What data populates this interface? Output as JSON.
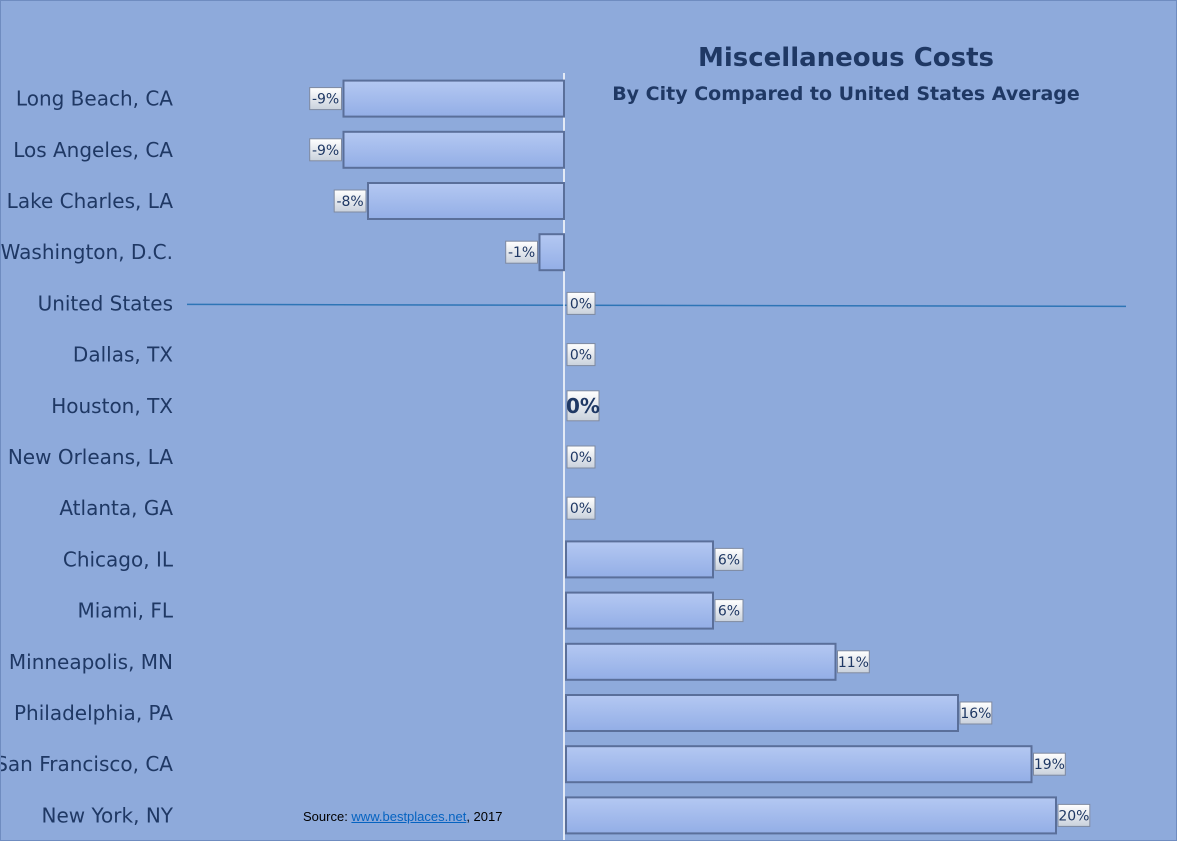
{
  "chart_data": {
    "type": "bar",
    "orientation": "horizontal",
    "title": "Miscellaneous Costs",
    "subtitle": "By City Compared to United States Average",
    "categories": [
      "Long Beach, CA",
      "Los Angeles,  CA",
      "Lake Charles, LA",
      "Washington, D.C.",
      "United States",
      "Dallas, TX",
      "Houston, TX",
      "New Orleans, LA",
      "Atlanta, GA",
      "Chicago, IL",
      "Miami, FL",
      "Minneapolis, MN",
      "Philadelphia, PA",
      "San Francisco, CA",
      "New York, NY"
    ],
    "values": [
      -9,
      -9,
      -8,
      -1,
      0,
      0,
      0,
      0,
      0,
      6,
      6,
      11,
      16,
      19,
      20
    ],
    "value_labels": [
      "-9%",
      "-9%",
      "-8%",
      "-1%",
      "0%",
      "0%",
      "0%",
      "0%",
      "0%",
      "6%",
      "6%",
      "11%",
      "16%",
      "19%",
      "20%"
    ],
    "highlighted_category": "Houston, TX",
    "xlim": [
      -23,
      23
    ],
    "grid": false,
    "legend": "none",
    "bar_color": "#9db7ec",
    "bar_edge_color": "#5a6f9a",
    "reference_line_category": "United States",
    "reference_line_color": "#2e75b6"
  },
  "source": {
    "prefix": "Source: ",
    "link_text": "www.bestplaces.net",
    "suffix": ", 2017"
  }
}
